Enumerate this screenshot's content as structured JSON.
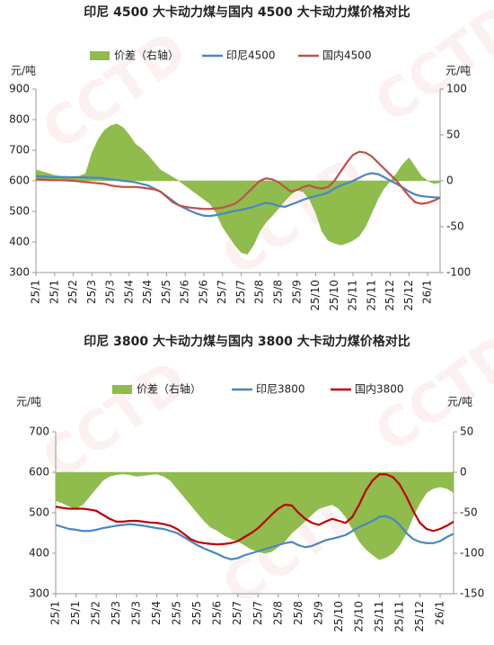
{
  "chart_data": [
    {
      "type": "line",
      "title": "印尼 4500 大卡动力煤与国内 4500 大卡动力煤价格对比",
      "y_label": "元/吨",
      "y2_label": "元/吨",
      "legend": "top",
      "watermark": "CCTD",
      "categories": [
        "25/1",
        null,
        null,
        "25/1",
        null,
        null,
        "25/2",
        null,
        null,
        "25/3",
        null,
        null,
        "25/3",
        null,
        null,
        "25/4",
        null,
        null,
        "25/4",
        null,
        null,
        "25/5",
        null,
        null,
        "25/6",
        null,
        null,
        "25/6",
        null,
        null,
        "25/7",
        null,
        null,
        "25/7",
        null,
        null,
        "25/8",
        null,
        null,
        "25/8",
        null,
        null,
        "25/9",
        null,
        null,
        "25/10",
        null,
        null,
        "25/10",
        null,
        null,
        "25/11",
        null,
        null,
        "25/11",
        null,
        null,
        "25/12",
        null,
        null,
        "25/12",
        null,
        null,
        "26/1",
        null,
        null
      ],
      "ylim": [
        300,
        900
      ],
      "yticks": [
        300,
        400,
        500,
        600,
        700,
        800,
        900
      ],
      "y2lim": [
        -100,
        100
      ],
      "y2ticks": [
        -100,
        -50,
        0,
        50,
        100
      ],
      "series": [
        {
          "name": "价差（右轴）",
          "type": "area",
          "axis": "y2",
          "color": "#8fbc4c",
          "values": [
            12,
            10,
            8,
            6,
            5,
            5,
            4,
            5,
            8,
            30,
            45,
            55,
            60,
            62,
            58,
            50,
            40,
            35,
            28,
            20,
            12,
            8,
            4,
            0,
            -5,
            -10,
            -15,
            -20,
            -25,
            -35,
            -50,
            -60,
            -70,
            -78,
            -80,
            -70,
            -55,
            -45,
            -38,
            -30,
            -22,
            -15,
            -10,
            -12,
            -20,
            -35,
            -55,
            -65,
            -68,
            -70,
            -68,
            -65,
            -60,
            -50,
            -35,
            -20,
            -8,
            0,
            8,
            18,
            25,
            15,
            5,
            0,
            -3,
            -2
          ]
        },
        {
          "name": "印尼4500",
          "type": "line",
          "color": "#4a86c6",
          "values": [
            615,
            614,
            613,
            612,
            612,
            611,
            612,
            612,
            611,
            610,
            610,
            608,
            605,
            603,
            600,
            598,
            595,
            590,
            585,
            575,
            565,
            550,
            535,
            520,
            510,
            500,
            492,
            486,
            485,
            488,
            492,
            497,
            502,
            505,
            510,
            515,
            522,
            528,
            525,
            518,
            515,
            522,
            530,
            538,
            545,
            550,
            555,
            562,
            575,
            585,
            592,
            600,
            610,
            620,
            625,
            622,
            612,
            600,
            590,
            578,
            565,
            555,
            550,
            548,
            546,
            545
          ]
        },
        {
          "name": "国内4500",
          "type": "line",
          "color": "#c0504d",
          "values": [
            605,
            604,
            603,
            602,
            602,
            601,
            600,
            598,
            596,
            594,
            592,
            590,
            585,
            582,
            580,
            580,
            580,
            578,
            575,
            572,
            565,
            548,
            530,
            520,
            515,
            512,
            510,
            508,
            508,
            510,
            512,
            518,
            525,
            540,
            560,
            580,
            600,
            608,
            605,
            595,
            580,
            565,
            570,
            580,
            585,
            578,
            575,
            580,
            600,
            630,
            660,
            685,
            695,
            692,
            680,
            660,
            640,
            620,
            600,
            575,
            550,
            530,
            525,
            528,
            535,
            545
          ]
        }
      ]
    },
    {
      "type": "line",
      "title": "印尼 3800 大卡动力煤与国内 3800 大卡动力煤价格对比",
      "y_label": "元/吨",
      "y2_label": "元/吨",
      "legend": "top",
      "watermark": "CCTD",
      "categories": [
        "25/1",
        null,
        null,
        "25/1",
        null,
        null,
        "25/2",
        null,
        null,
        "25/3",
        null,
        null,
        "25/3",
        null,
        null,
        "25/4",
        null,
        null,
        "25/5",
        null,
        null,
        "25/5",
        null,
        null,
        "25/6",
        null,
        null,
        "25/7",
        null,
        null,
        "25/7",
        null,
        null,
        "25/8",
        null,
        null,
        "25/8",
        null,
        null,
        "25/9",
        null,
        null,
        "25/10",
        null,
        null,
        "25/10",
        null,
        null,
        "25/11",
        null,
        null,
        "25/11",
        null,
        null,
        "25/12",
        null,
        null,
        "26/1",
        null,
        null
      ],
      "ylim": [
        300,
        700
      ],
      "yticks": [
        300,
        400,
        500,
        600,
        700
      ],
      "y2lim": [
        -150,
        50
      ],
      "y2ticks": [
        -150,
        -100,
        -50,
        0,
        50
      ],
      "series": [
        {
          "name": "价差（右轴）",
          "type": "area",
          "axis": "y2",
          "color": "#8fbc4c",
          "values": [
            -35,
            -38,
            -42,
            -45,
            -40,
            -30,
            -20,
            -10,
            -5,
            -3,
            -2,
            -3,
            -5,
            -4,
            -3,
            -2,
            -5,
            -10,
            -20,
            -30,
            -40,
            -50,
            -60,
            -68,
            -72,
            -78,
            -82,
            -85,
            -90,
            -95,
            -98,
            -100,
            -98,
            -92,
            -85,
            -75,
            -68,
            -60,
            -52,
            -45,
            -42,
            -40,
            -45,
            -55,
            -70,
            -85,
            -95,
            -102,
            -108,
            -105,
            -100,
            -90,
            -75,
            -55,
            -38,
            -25,
            -20,
            -18,
            -20,
            -25
          ]
        },
        {
          "name": "印尼3800",
          "type": "line",
          "color": "#4a86c6",
          "values": [
            470,
            465,
            460,
            458,
            455,
            455,
            458,
            462,
            465,
            468,
            470,
            472,
            470,
            468,
            465,
            462,
            460,
            455,
            450,
            440,
            430,
            420,
            412,
            405,
            398,
            390,
            385,
            388,
            395,
            400,
            405,
            410,
            415,
            420,
            425,
            428,
            420,
            415,
            418,
            425,
            432,
            436,
            440,
            445,
            455,
            465,
            472,
            480,
            490,
            492,
            485,
            470,
            450,
            435,
            428,
            425,
            425,
            430,
            440,
            448
          ]
        },
        {
          "name": "国内3800",
          "type": "line",
          "color": "#c00000",
          "values": [
            515,
            512,
            510,
            510,
            510,
            508,
            505,
            495,
            485,
            478,
            478,
            480,
            480,
            478,
            476,
            475,
            472,
            468,
            460,
            448,
            435,
            428,
            425,
            423,
            422,
            423,
            425,
            430,
            440,
            450,
            462,
            478,
            495,
            510,
            520,
            518,
            500,
            485,
            475,
            470,
            478,
            485,
            480,
            475,
            490,
            520,
            555,
            580,
            595,
            595,
            588,
            570,
            540,
            505,
            475,
            460,
            455,
            460,
            468,
            478
          ]
        }
      ]
    }
  ]
}
